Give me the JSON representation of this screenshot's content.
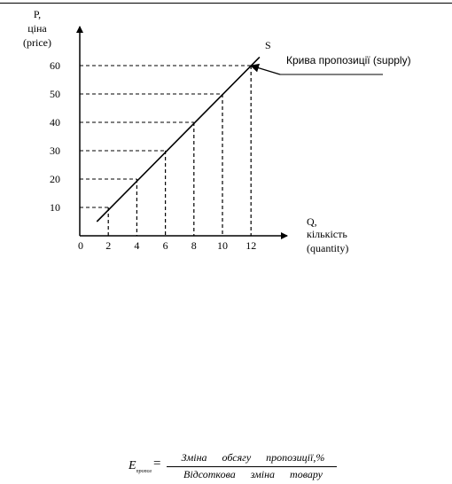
{
  "chart_data": {
    "type": "line",
    "title": "",
    "y_label_lines": [
      "P,",
      "ціна",
      "(price)"
    ],
    "x_label_lines": [
      "Q,",
      "кількість",
      "(quantity)"
    ],
    "x_origin_label": "0",
    "x_ticks": [
      "2",
      "4",
      "6",
      "8",
      "10",
      "12"
    ],
    "y_ticks": [
      "10",
      "20",
      "30",
      "40",
      "50",
      "60"
    ],
    "xlim": [
      0,
      14
    ],
    "ylim": [
      0,
      70
    ],
    "series": [
      {
        "name": "S",
        "points": [
          [
            1.2,
            5
          ],
          [
            12.6,
            63
          ]
        ]
      }
    ],
    "guide_points": [
      [
        2,
        10
      ],
      [
        4,
        20
      ],
      [
        6,
        30
      ],
      [
        8,
        40
      ],
      [
        10,
        50
      ],
      [
        12,
        60
      ]
    ],
    "annotation": "Крива пропозиції (supply)",
    "grid": false,
    "colors": {
      "line": "#000000",
      "background": "#ffffff"
    }
  },
  "formula": {
    "lhs_letter": "E",
    "lhs_subscript": "пропоз",
    "equals": "=",
    "numerator": "Зміна обсягу пропозиції,%",
    "denominator": "Відсоткова зміна товару"
  }
}
